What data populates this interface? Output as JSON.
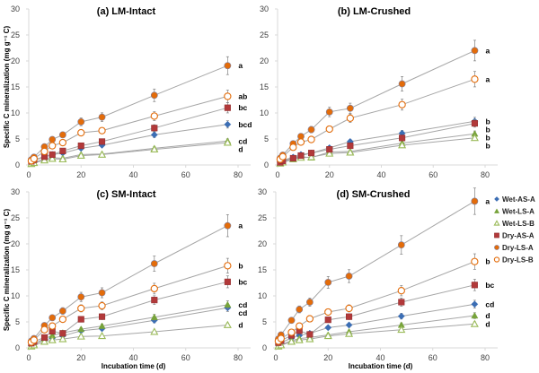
{
  "chart_data": {
    "type": "scatter",
    "x": [
      1,
      2,
      6,
      9,
      13,
      20,
      28,
      48,
      76
    ],
    "xlabel": "Incubation time (d)",
    "ylabel": "Specific C mineralization (mg g⁻¹ C)",
    "xlim": [
      0,
      80
    ],
    "ylim": [
      0,
      30
    ],
    "xticks": [
      0,
      20,
      40,
      60,
      80
    ],
    "yticks": [
      0,
      5,
      10,
      15,
      20,
      25,
      30
    ],
    "grid": false,
    "legend": {
      "placement": "right",
      "entries": [
        {
          "name": "Wet-AS-A",
          "marker": "diamond",
          "color": "#3c6eb4",
          "filled": true
        },
        {
          "name": "Wet-LS-A",
          "marker": "triangle",
          "color": "#77a33a",
          "filled": true
        },
        {
          "name": "Wet-LS-B",
          "marker": "triangle",
          "color": "#9bbb59",
          "filled": false
        },
        {
          "name": "Dry-AS-A",
          "marker": "square",
          "color": "#b2393a",
          "filled": true
        },
        {
          "name": "Dry-LS-A",
          "marker": "circle",
          "color": "#e36c0a",
          "filled": true
        },
        {
          "name": "Dry-LS-B",
          "marker": "circle",
          "color": "#e36c0a",
          "filled": false
        }
      ]
    },
    "panels": [
      {
        "title": "(a) LM-Intact",
        "series": [
          {
            "name": "Wet-AS-A",
            "values": [
              0.6,
              0.9,
              1.5,
              2.0,
              2.3,
              3.2,
              3.8,
              5.8,
              7.8
            ],
            "sig": "bcd"
          },
          {
            "name": "Wet-LS-A",
            "values": [
              0.3,
              0.5,
              1.1,
              1.4,
              1.3,
              2.0,
              2.1,
              3.2,
              4.6
            ],
            "sig": "cd"
          },
          {
            "name": "Wet-LS-B",
            "values": [
              0.2,
              0.4,
              0.9,
              1.2,
              1.1,
              1.8,
              2.0,
              3.0,
              4.3
            ],
            "sig": "d"
          },
          {
            "name": "Dry-AS-A",
            "values": [
              0.7,
              1.0,
              1.6,
              2.0,
              2.7,
              3.7,
              4.5,
              7.1,
              11.0
            ],
            "sig": "bc"
          },
          {
            "name": "Dry-LS-A",
            "values": [
              1.0,
              1.5,
              3.5,
              4.9,
              5.8,
              8.3,
              9.2,
              13.4,
              19.1
            ],
            "sig": "a"
          },
          {
            "name": "Dry-LS-B",
            "values": [
              0.8,
              1.2,
              2.6,
              3.7,
              4.3,
              6.2,
              6.6,
              9.4,
              13.2
            ],
            "sig": "ab"
          }
        ]
      },
      {
        "title": "(b) LM-Crushed",
        "series": [
          {
            "name": "Wet-AS-A",
            "values": [
              0.6,
              0.9,
              1.5,
              2.0,
              2.3,
              3.3,
              4.5,
              6.1,
              8.4
            ],
            "sig": "b"
          },
          {
            "name": "Wet-LS-A",
            "values": [
              0.4,
              0.6,
              1.2,
              1.6,
              1.4,
              2.5,
              2.6,
              4.2,
              6.0
            ],
            "sig": "b"
          },
          {
            "name": "Wet-LS-B",
            "values": [
              0.3,
              0.5,
              1.1,
              1.4,
              1.5,
              2.2,
              2.4,
              3.8,
              5.2
            ],
            "sig": "b"
          },
          {
            "name": "Dry-AS-A",
            "values": [
              0.5,
              0.8,
              1.3,
              1.8,
              2.3,
              3.0,
              3.7,
              5.2,
              8.0
            ],
            "sig": "b"
          },
          {
            "name": "Dry-LS-A",
            "values": [
              1.3,
              1.9,
              4.1,
              5.5,
              6.8,
              10.2,
              10.9,
              15.6,
              22.0
            ],
            "sig": "a"
          },
          {
            "name": "Dry-LS-B",
            "values": [
              1.1,
              1.6,
              3.4,
              4.4,
              4.9,
              6.9,
              9.0,
              11.6,
              16.5
            ],
            "sig": "a"
          }
        ]
      },
      {
        "title": "(c) SM-Intact",
        "series": [
          {
            "name": "Wet-AS-A",
            "values": [
              0.5,
              0.8,
              1.5,
              1.9,
              2.3,
              3.3,
              3.7,
              5.3,
              7.7
            ],
            "sig": "cd"
          },
          {
            "name": "Wet-LS-A",
            "values": [
              0.4,
              0.7,
              1.8,
              2.4,
              2.9,
              3.6,
              4.2,
              5.9,
              8.3
            ],
            "sig": "cd"
          },
          {
            "name": "Wet-LS-B",
            "values": [
              0.3,
              0.5,
              1.2,
              1.5,
              1.7,
              2.2,
              2.3,
              3.1,
              4.4
            ],
            "sig": "d"
          },
          {
            "name": "Dry-AS-A",
            "values": [
              0.9,
              1.2,
              2.0,
              3.2,
              2.8,
              5.5,
              6.0,
              9.2,
              12.7
            ],
            "sig": "bc"
          },
          {
            "name": "Dry-LS-A",
            "values": [
              1.3,
              1.8,
              4.3,
              5.8,
              7.1,
              9.8,
              10.6,
              16.2,
              23.5
            ],
            "sig": "a"
          },
          {
            "name": "Dry-LS-B",
            "values": [
              1.1,
              1.5,
              3.5,
              4.2,
              5.5,
              7.6,
              8.1,
              11.4,
              15.8
            ],
            "sig": "b"
          }
        ]
      },
      {
        "title": "(d) SM-Crushed",
        "series": [
          {
            "name": "Wet-AS-A",
            "values": [
              0.7,
              1.0,
              1.9,
              2.4,
              2.8,
              3.9,
              4.4,
              6.1,
              8.4
            ],
            "sig": "cd"
          },
          {
            "name": "Wet-LS-A",
            "values": [
              0.4,
              0.6,
              1.4,
              1.8,
              2.0,
              2.5,
              3.1,
              4.4,
              6.2
            ],
            "sig": "d"
          },
          {
            "name": "Wet-LS-B",
            "values": [
              0.3,
              0.5,
              1.2,
              1.5,
              1.7,
              2.3,
              2.7,
              3.5,
              4.6
            ],
            "sig": "d"
          },
          {
            "name": "Dry-AS-A",
            "values": [
              1.0,
              1.4,
              2.4,
              3.3,
              2.6,
              5.4,
              6.0,
              8.8,
              12.1
            ],
            "sig": "bc"
          },
          {
            "name": "Dry-LS-A",
            "values": [
              1.7,
              2.5,
              5.3,
              7.4,
              8.8,
              12.6,
              13.8,
              19.8,
              28.2
            ],
            "sig": "a"
          },
          {
            "name": "Dry-LS-B",
            "values": [
              1.3,
              1.8,
              3.0,
              4.2,
              5.6,
              6.9,
              7.6,
              11.0,
              16.6
            ],
            "sig": "b"
          }
        ]
      }
    ]
  }
}
